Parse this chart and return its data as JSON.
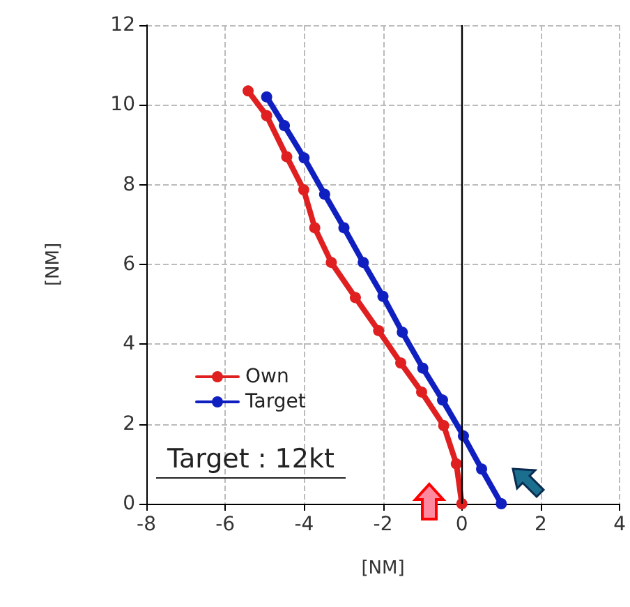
{
  "chart_data": {
    "type": "line",
    "xlabel": "[NM]",
    "ylabel": "[NM]",
    "xlim": [
      -8,
      4
    ],
    "xticks": [
      -8,
      -6,
      -4,
      -2,
      0,
      2,
      4
    ],
    "ylim": [
      0,
      12
    ],
    "yticks": [
      0,
      2,
      4,
      6,
      8,
      10,
      12
    ],
    "grid": true,
    "legend": "left",
    "marker": "circle",
    "line_style": "solid",
    "ref_lines": [
      {
        "axis": "x",
        "value": 0,
        "label": null,
        "color": "#000000"
      }
    ],
    "annotations": [
      "Target : 12kt"
    ],
    "series": [
      {
        "name": "Own",
        "color": "#e02020",
        "x": [
          0,
          -0.14,
          -0.46,
          -1.02,
          -1.55,
          -2.11,
          -2.7,
          -3.31,
          -3.73,
          -4.01,
          -4.44,
          -4.95,
          -5.42
        ],
        "values": [
          0,
          1.0,
          1.96,
          2.8,
          3.53,
          4.34,
          5.17,
          6.05,
          6.92,
          7.87,
          8.7,
          9.73,
          10.35
        ]
      },
      {
        "name": "Target",
        "color": "#1020c0",
        "x": [
          1.0,
          0.5,
          0.04,
          -0.49,
          -0.99,
          -1.51,
          -2.0,
          -2.5,
          -2.99,
          -3.48,
          -4.0,
          -4.5,
          -4.95
        ],
        "values": [
          0,
          0.87,
          1.7,
          2.6,
          3.4,
          4.3,
          5.2,
          6.05,
          6.92,
          7.76,
          8.67,
          9.48,
          10.2
        ]
      }
    ]
  }
}
